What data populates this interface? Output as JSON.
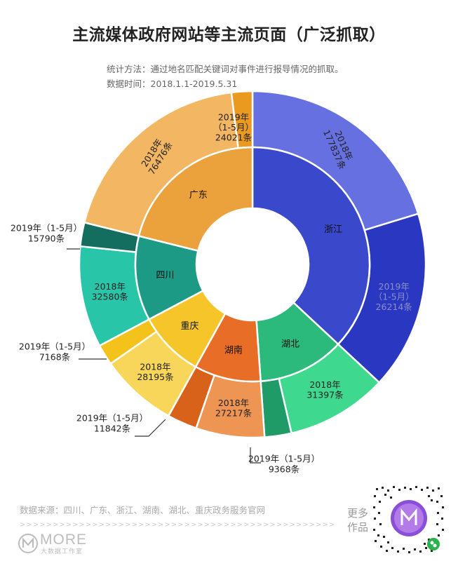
{
  "header": {
    "title": "主流媒体政府网站等主流页面（广泛抓取）",
    "method": "统计方法：通过地名匹配关键词对事件进行报导情况的抓取。",
    "period": "数据时间：2018.1.1-2019.5.31"
  },
  "footer": {
    "source": "数据来源：四川、广东、浙江、湖南、湖北、重庆政务服务官网",
    "dashes": ">>>>>>>>>>>>>>>>>>>>>>>>>>>>>>>>>>>>>>>>>>>>>>>>>>>>>>>>>>",
    "logo_text": "MORE",
    "logo_sub": "大数据工作室",
    "more_line1": "更多",
    "more_line2": "作品"
  },
  "chart_data": {
    "type": "sunburst",
    "inner_ring": [
      {
        "name": "浙江",
        "color": "#3a48cc"
      },
      {
        "name": "湖北",
        "color": "#2bba7c"
      },
      {
        "name": "湖南",
        "color": "#e86d26"
      },
      {
        "name": "重庆",
        "color": "#f5c52a"
      },
      {
        "name": "四川",
        "color": "#1c9a86"
      },
      {
        "name": "广东",
        "color": "#eba23c"
      }
    ],
    "outer_ring": [
      {
        "parent": "浙江",
        "period": "2018年",
        "value": 177837,
        "label": "2018年\n177837条",
        "color": "#6670e0"
      },
      {
        "parent": "浙江",
        "period": "2019年（1-5月）",
        "value": 26214,
        "label": "2019年\n（1-5月）\n26214条",
        "color": "#2a37c0"
      },
      {
        "parent": "湖北",
        "period": "2018年",
        "value": 31397,
        "label": "2018年\n31397条",
        "color": "#3ed98f"
      },
      {
        "parent": "湖北",
        "period": "2019年（1-5月）",
        "value": 9368,
        "label": "2019年（1-5月）\n9368条",
        "color": "#1e9b67"
      },
      {
        "parent": "湖南",
        "period": "2018年",
        "value": 27217,
        "label": "2018年\n27217条",
        "color": "#ee9553"
      },
      {
        "parent": "湖南",
        "period": "2019年（1-5月）",
        "value": 11842,
        "label": "2019年（1-5月）\n11842条",
        "color": "#d9621a"
      },
      {
        "parent": "重庆",
        "period": "2018年",
        "value": 28195,
        "label": "2018年\n28195条",
        "color": "#f7d65a"
      },
      {
        "parent": "重庆",
        "period": "2019年（1-5月）",
        "value": 7168,
        "label": "2019年（1-5月）\n7168条",
        "color": "#f3c21b"
      },
      {
        "parent": "四川",
        "period": "2018年",
        "value": 32580,
        "label": "2018年\n32580条",
        "color": "#28c5a9"
      },
      {
        "parent": "四川",
        "period": "2019年（1-5月）",
        "value": 15790,
        "label": "2019年（1-5月）\n15790条",
        "color": "#136e5f"
      },
      {
        "parent": "广东",
        "period": "2018年",
        "value": 76476,
        "label": "2018年\n76476条",
        "color": "#f3b763"
      },
      {
        "parent": "广东",
        "period": "2019年（1-5月）",
        "value": 24021,
        "label": "2019年\n（1-5月）\n24021条",
        "color": "#e99a1f"
      }
    ]
  }
}
